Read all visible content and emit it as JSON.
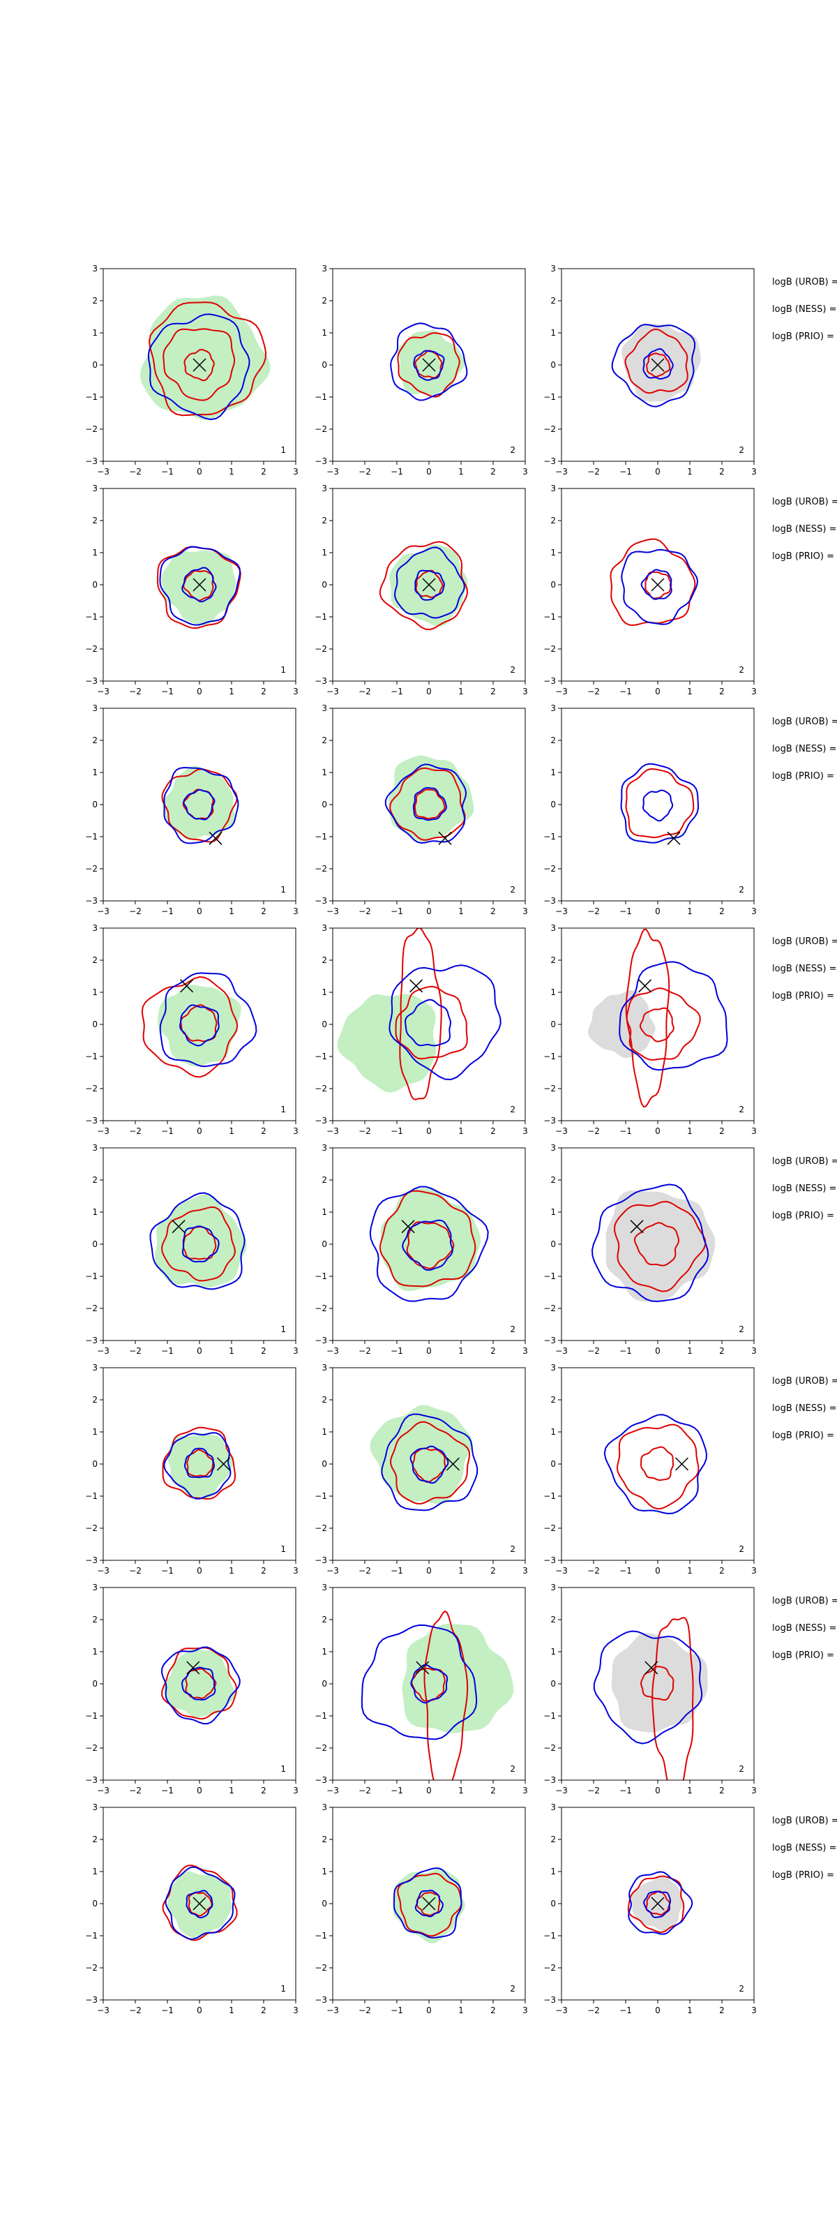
{
  "colors": {
    "background": "#ffffff",
    "axes": "#000000",
    "blue_contour": "#0000dd",
    "red_contour": "#e00000",
    "green_fill": "#b8ecb8",
    "gray_fill": "#d6d6d6",
    "marker": "#000000"
  },
  "chart_data": {
    "type": "contour",
    "layout": "8 rows x 3 columns of panels",
    "xlim": [
      -3,
      3
    ],
    "ylim": [
      -3,
      3
    ],
    "xticks": [
      "-3",
      "-2",
      "-1",
      "0",
      "1",
      "2",
      "3"
    ],
    "yticks": [
      "-3",
      "-2",
      "-1",
      "0",
      "1",
      "2",
      "3"
    ],
    "grid": false,
    "column_fill": [
      "green",
      "green",
      "gray"
    ],
    "side_labels": [
      "logB (UROB) =",
      "logB (NESS) =",
      "logB (PRIO) ="
    ],
    "rows": [
      {
        "marker": [
          0.0,
          0.0
        ],
        "panel_labels": [
          "1",
          "2",
          "2"
        ],
        "panels": [
          {
            "fill": {
              "cx": 0.1,
              "cy": 0.2,
              "r": 1.9
            },
            "blue": [
              {
                "cx": 0.0,
                "cy": 0.0,
                "r": 1.55
              }
            ],
            "red": [
              {
                "cx": 0.2,
                "cy": 0.2,
                "r": 1.75
              },
              {
                "cx": 0.0,
                "cy": 0.1,
                "r": 1.1
              },
              {
                "cx": 0.0,
                "cy": 0.0,
                "r": 0.45
              }
            ]
          },
          {
            "fill": {
              "cx": 0.0,
              "cy": 0.05,
              "r": 1.0
            },
            "blue": [
              {
                "cx": -0.05,
                "cy": 0.1,
                "r": 1.15
              },
              {
                "cx": 0.0,
                "cy": 0.0,
                "r": 0.45
              }
            ],
            "red": [
              {
                "cx": 0.0,
                "cy": 0.05,
                "r": 0.95
              },
              {
                "cx": 0.0,
                "cy": 0.0,
                "r": 0.4
              }
            ]
          },
          {
            "fill": {
              "cx": 0.1,
              "cy": 0.1,
              "r": 1.2
            },
            "blue": [
              {
                "cx": -0.05,
                "cy": 0.05,
                "r": 1.25
              },
              {
                "cx": 0.0,
                "cy": 0.0,
                "r": 0.45
              }
            ],
            "red": [
              {
                "cx": 0.0,
                "cy": 0.05,
                "r": 0.95
              },
              {
                "cx": 0.0,
                "cy": 0.0,
                "r": 0.35
              }
            ]
          }
        ]
      },
      {
        "marker": [
          0.0,
          0.0
        ],
        "panel_labels": [
          "1",
          "2",
          "2"
        ],
        "panels": [
          {
            "fill": {
              "cx": 0.0,
              "cy": 0.0,
              "r": 1.15
            },
            "blue": [
              {
                "cx": 0.0,
                "cy": 0.0,
                "r": 1.2
              },
              {
                "cx": 0.0,
                "cy": 0.0,
                "r": 0.5
              }
            ],
            "red": [
              {
                "cx": -0.05,
                "cy": -0.05,
                "r": 1.25
              },
              {
                "cx": 0.0,
                "cy": 0.0,
                "r": 0.45
              }
            ]
          },
          {
            "fill": {
              "cx": 0.0,
              "cy": 0.0,
              "r": 1.2
            },
            "blue": [
              {
                "cx": 0.0,
                "cy": 0.0,
                "r": 1.05
              },
              {
                "cx": 0.0,
                "cy": 0.0,
                "r": 0.45
              }
            ],
            "red": [
              {
                "cx": -0.1,
                "cy": 0.0,
                "r": 1.3
              },
              {
                "cx": 0.0,
                "cy": 0.0,
                "r": 0.4
              }
            ]
          },
          {
            "fill": null,
            "blue": [
              {
                "cx": 0.0,
                "cy": 0.0,
                "r": 1.15
              },
              {
                "cx": 0.0,
                "cy": 0.0,
                "r": 0.45
              }
            ],
            "red": [
              {
                "cx": -0.2,
                "cy": 0.0,
                "r": 1.3
              },
              {
                "cx": 0.0,
                "cy": 0.0,
                "r": 0.4
              }
            ]
          }
        ]
      },
      {
        "marker": [
          0.5,
          -1.05
        ],
        "panel_labels": [
          "1",
          "2",
          "2"
        ],
        "panels": [
          {
            "fill": {
              "cx": 0.0,
              "cy": 0.0,
              "r": 1.1
            },
            "blue": [
              {
                "cx": 0.0,
                "cy": 0.0,
                "r": 1.15
              },
              {
                "cx": 0.0,
                "cy": 0.0,
                "r": 0.45
              }
            ],
            "red": [
              {
                "cx": 0.0,
                "cy": 0.0,
                "r": 1.1
              },
              {
                "cx": 0.0,
                "cy": 0.0,
                "r": 0.45
              }
            ]
          },
          {
            "fill": {
              "cx": 0.0,
              "cy": 0.2,
              "r": 1.3
            },
            "blue": [
              {
                "cx": 0.0,
                "cy": 0.0,
                "r": 1.2
              },
              {
                "cx": 0.0,
                "cy": 0.0,
                "r": 0.5
              }
            ],
            "red": [
              {
                "cx": 0.0,
                "cy": 0.0,
                "r": 1.1
              },
              {
                "cx": 0.0,
                "cy": 0.0,
                "r": 0.45
              }
            ]
          },
          {
            "fill": null,
            "blue": [
              {
                "cx": 0.0,
                "cy": 0.0,
                "r": 1.2
              },
              {
                "cx": 0.0,
                "cy": 0.0,
                "r": 0.45
              }
            ],
            "red": [
              {
                "cx": 0.0,
                "cy": 0.0,
                "r": 1.05
              }
            ]
          }
        ]
      },
      {
        "marker": [
          -0.4,
          1.2
        ],
        "panel_labels": [
          "1",
          "2",
          "2"
        ],
        "panels": [
          {
            "fill": {
              "cx": 0.0,
              "cy": 0.0,
              "r": 1.25
            },
            "blue": [
              {
                "cx": 0.2,
                "cy": 0.1,
                "r": 1.45
              },
              {
                "cx": 0.0,
                "cy": 0.0,
                "r": 0.6
              }
            ],
            "red": [
              {
                "cx": -0.3,
                "cy": -0.05,
                "r": 1.45
              },
              {
                "cx": 0.0,
                "cy": 0.0,
                "r": 0.55
              }
            ]
          },
          {
            "fill": {
              "cx": -1.2,
              "cy": -0.5,
              "r": 1.5
            },
            "blue": [
              {
                "cx": 0.5,
                "cy": 0.2,
                "r": 1.7
              },
              {
                "cx": 0.0,
                "cy": 0.0,
                "r": 0.7
              }
            ],
            "red": [
              {
                "cx": 0.1,
                "cy": 0.0,
                "r": 1.1
              },
              {
                "cx": -0.3,
                "cy": 0.3,
                "r": 1.4,
                "elong": true
              }
            ]
          },
          {
            "fill": {
              "cx": -1.1,
              "cy": 0.0,
              "r": 1.0
            },
            "blue": [
              {
                "cx": 0.5,
                "cy": 0.2,
                "r": 1.65
              }
            ],
            "red": [
              {
                "cx": 0.1,
                "cy": 0.0,
                "r": 1.1
              },
              {
                "cx": -0.3,
                "cy": 0.3,
                "r": 1.4,
                "elong": true
              },
              {
                "cx": 0.0,
                "cy": 0.0,
                "r": 0.5
              }
            ]
          }
        ]
      },
      {
        "marker": [
          -0.65,
          0.55
        ],
        "panel_labels": [
          "1",
          "2",
          "2"
        ],
        "panels": [
          {
            "fill": {
              "cx": 0.0,
              "cy": 0.0,
              "r": 1.4
            },
            "blue": [
              {
                "cx": 0.0,
                "cy": 0.0,
                "r": 1.45
              },
              {
                "cx": 0.0,
                "cy": 0.0,
                "r": 0.55
              }
            ],
            "red": [
              {
                "cx": 0.0,
                "cy": 0.0,
                "r": 1.1
              },
              {
                "cx": 0.0,
                "cy": 0.0,
                "r": 0.5
              }
            ]
          },
          {
            "fill": {
              "cx": 0.0,
              "cy": 0.1,
              "r": 1.55
            },
            "blue": [
              {
                "cx": -0.1,
                "cy": 0.0,
                "r": 1.75
              },
              {
                "cx": 0.0,
                "cy": 0.0,
                "r": 0.75
              }
            ],
            "red": [
              {
                "cx": -0.05,
                "cy": 0.1,
                "r": 1.45
              },
              {
                "cx": 0.0,
                "cy": 0.0,
                "r": 0.7
              }
            ]
          },
          {
            "fill": {
              "cx": 0.0,
              "cy": 0.0,
              "r": 1.7
            },
            "blue": [
              {
                "cx": -0.2,
                "cy": 0.0,
                "r": 1.75
              }
            ],
            "red": [
              {
                "cx": 0.0,
                "cy": 0.0,
                "r": 1.35
              },
              {
                "cx": 0.0,
                "cy": 0.0,
                "r": 0.65
              }
            ]
          }
        ]
      },
      {
        "marker": [
          0.75,
          0.0
        ],
        "panel_labels": [
          "1",
          "2",
          "2"
        ],
        "panels": [
          {
            "fill": {
              "cx": 0.0,
              "cy": 0.0,
              "r": 1.0
            },
            "blue": [
              {
                "cx": 0.0,
                "cy": 0.0,
                "r": 1.0
              },
              {
                "cx": 0.0,
                "cy": 0.0,
                "r": 0.45
              }
            ],
            "red": [
              {
                "cx": 0.0,
                "cy": 0.0,
                "r": 1.1
              },
              {
                "cx": 0.0,
                "cy": 0.0,
                "r": 0.4
              }
            ]
          },
          {
            "fill": {
              "cx": -0.2,
              "cy": 0.3,
              "r": 1.5
            },
            "blue": [
              {
                "cx": 0.0,
                "cy": 0.0,
                "r": 1.45
              },
              {
                "cx": 0.0,
                "cy": 0.0,
                "r": 0.55
              }
            ],
            "red": [
              {
                "cx": 0.0,
                "cy": 0.0,
                "r": 1.2
              },
              {
                "cx": 0.0,
                "cy": 0.0,
                "r": 0.5
              }
            ]
          },
          {
            "fill": null,
            "blue": [
              {
                "cx": 0.0,
                "cy": 0.0,
                "r": 1.5
              }
            ],
            "red": [
              {
                "cx": 0.0,
                "cy": 0.0,
                "r": 1.25
              },
              {
                "cx": 0.0,
                "cy": 0.0,
                "r": 0.5
              }
            ]
          }
        ]
      },
      {
        "marker": [
          -0.2,
          0.5
        ],
        "panel_labels": [
          "1",
          "2",
          "2"
        ],
        "panels": [
          {
            "fill": {
              "cx": 0.0,
              "cy": 0.0,
              "r": 1.05
            },
            "blue": [
              {
                "cx": 0.0,
                "cy": 0.0,
                "r": 1.15
              },
              {
                "cx": 0.0,
                "cy": 0.0,
                "r": 0.5
              }
            ],
            "red": [
              {
                "cx": 0.0,
                "cy": 0.0,
                "r": 1.1
              },
              {
                "cx": 0.0,
                "cy": 0.0,
                "r": 0.45
              }
            ]
          },
          {
            "fill": {
              "cx": 0.8,
              "cy": 0.1,
              "r": 1.7
            },
            "blue": [
              {
                "cx": -0.3,
                "cy": 0.0,
                "r": 1.75
              },
              {
                "cx": 0.0,
                "cy": 0.0,
                "r": 0.55
              }
            ],
            "red": [
              {
                "cx": 0.5,
                "cy": -0.5,
                "r": 1.4,
                "elong": true
              },
              {
                "cx": 0.0,
                "cy": 0.0,
                "r": 0.5
              }
            ]
          },
          {
            "fill": {
              "cx": 0.0,
              "cy": 0.0,
              "r": 1.5
            },
            "blue": [
              {
                "cx": -0.3,
                "cy": 0.0,
                "r": 1.65
              }
            ],
            "red": [
              {
                "cx": 0.5,
                "cy": -0.5,
                "r": 1.4,
                "elong": true
              },
              {
                "cx": 0.0,
                "cy": 0.0,
                "r": 0.5
              }
            ]
          }
        ]
      },
      {
        "marker": [
          0.0,
          0.0
        ],
        "panel_labels": [
          "1",
          "2",
          "2"
        ],
        "panels": [
          {
            "fill": {
              "cx": 0.0,
              "cy": 0.0,
              "r": 1.0
            },
            "blue": [
              {
                "cx": 0.0,
                "cy": 0.0,
                "r": 1.05
              },
              {
                "cx": 0.0,
                "cy": 0.0,
                "r": 0.4
              }
            ],
            "red": [
              {
                "cx": 0.0,
                "cy": 0.0,
                "r": 1.1
              },
              {
                "cx": 0.0,
                "cy": 0.0,
                "r": 0.35
              }
            ]
          },
          {
            "fill": {
              "cx": 0.0,
              "cy": 0.0,
              "r": 1.1
            },
            "blue": [
              {
                "cx": 0.0,
                "cy": 0.0,
                "r": 1.05
              },
              {
                "cx": 0.0,
                "cy": 0.0,
                "r": 0.4
              }
            ],
            "red": [
              {
                "cx": 0.0,
                "cy": 0.0,
                "r": 0.95
              },
              {
                "cx": 0.0,
                "cy": 0.0,
                "r": 0.35
              }
            ]
          },
          {
            "fill": {
              "cx": 0.0,
              "cy": 0.0,
              "r": 0.8
            },
            "blue": [
              {
                "cx": 0.0,
                "cy": 0.0,
                "r": 0.95
              },
              {
                "cx": 0.0,
                "cy": 0.0,
                "r": 0.4
              }
            ],
            "red": [
              {
                "cx": 0.0,
                "cy": 0.0,
                "r": 0.85
              },
              {
                "cx": 0.0,
                "cy": 0.0,
                "r": 0.35
              }
            ]
          }
        ]
      }
    ]
  }
}
